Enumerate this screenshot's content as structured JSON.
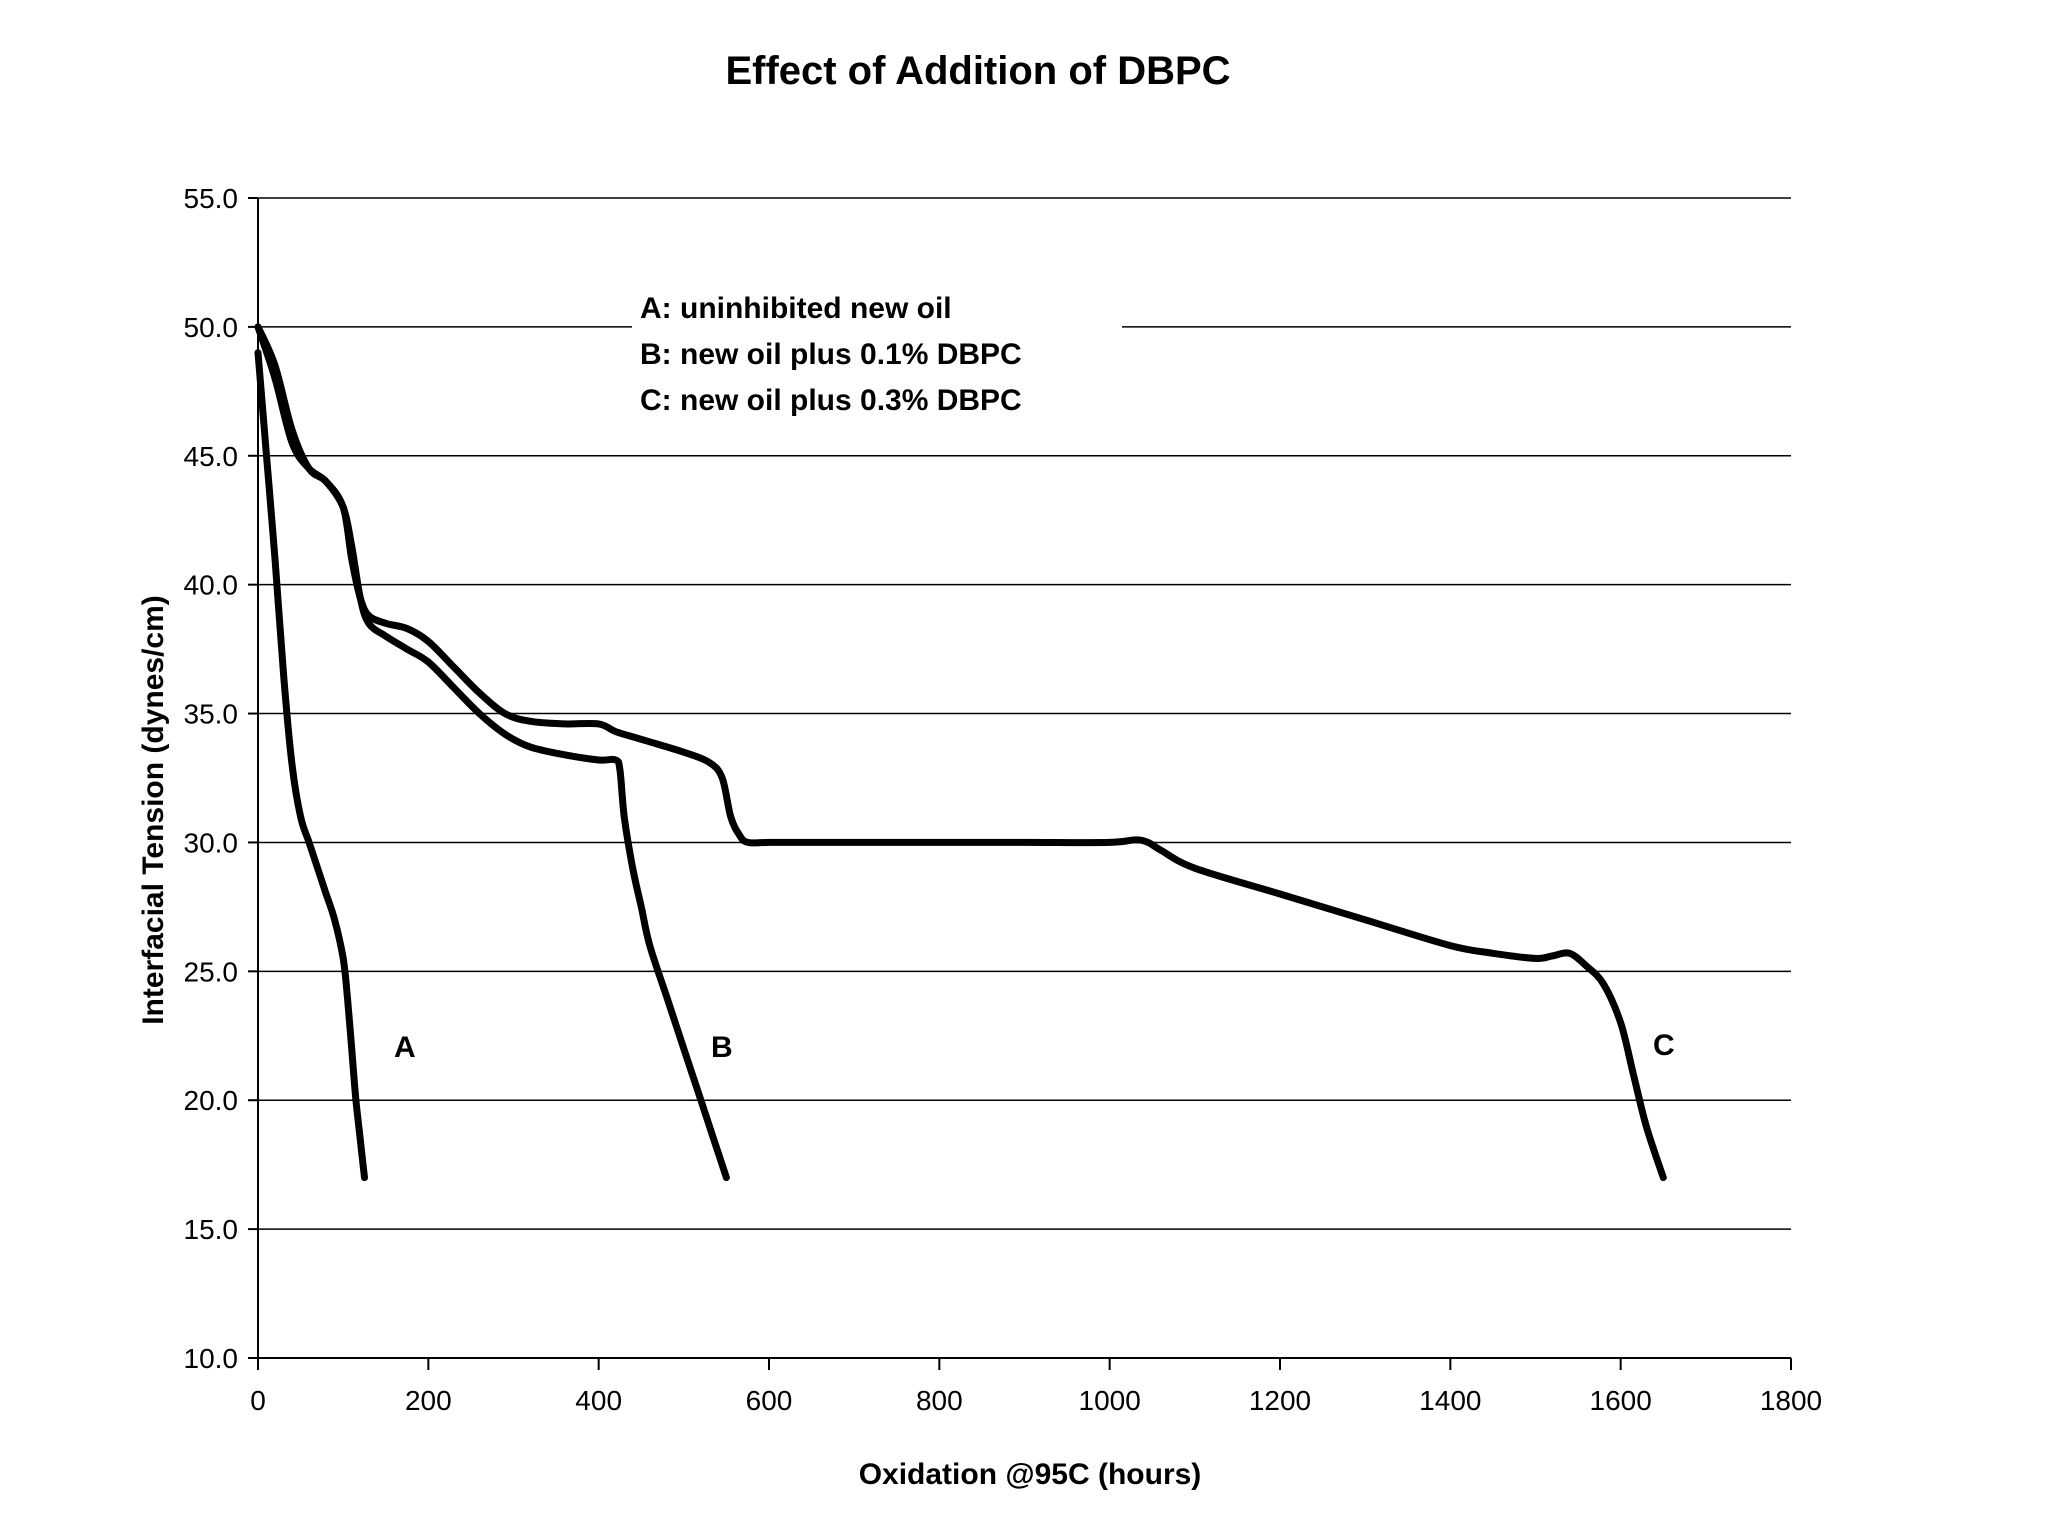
{
  "chart_data": {
    "type": "line",
    "title": "Effect of Addition of DBPC",
    "xlabel": "Oxidation @95C (hours)",
    "ylabel": "Interfacial Tension (dynes/cm)",
    "xlim": [
      0,
      1800
    ],
    "ylim": [
      10,
      55
    ],
    "x_ticks": [
      "0",
      "200",
      "400",
      "600",
      "800",
      "1000",
      "1200",
      "1400",
      "1600",
      "1800"
    ],
    "y_ticks": [
      "10.0",
      "15.0",
      "20.0",
      "25.0",
      "30.0",
      "35.0",
      "40.0",
      "45.0",
      "50.0",
      "55.0"
    ],
    "x_tick_values": [
      0,
      200,
      400,
      600,
      800,
      1000,
      1200,
      1400,
      1600,
      1800
    ],
    "y_tick_values": [
      10,
      15,
      20,
      25,
      30,
      35,
      40,
      45,
      50,
      55
    ],
    "grid": "horizontal",
    "legend_placement": "top-center",
    "legend": [
      "A: uninhibited new oil",
      "B: new oil plus 0.1% DBPC",
      "C: new oil plus 0.3% DBPC"
    ],
    "line_color": "#000000",
    "series": [
      {
        "name": "A",
        "x": [
          0,
          10,
          20,
          30,
          40,
          50,
          60,
          70,
          80,
          90,
          100,
          105,
          110,
          115,
          120,
          125
        ],
        "y": [
          49,
          45,
          41,
          36.5,
          33,
          31,
          30,
          29,
          28,
          27,
          25.5,
          24,
          22,
          20,
          18.5,
          17
        ]
      },
      {
        "name": "B",
        "x": [
          0,
          20,
          40,
          60,
          80,
          100,
          110,
          120,
          130,
          150,
          175,
          200,
          230,
          260,
          290,
          320,
          360,
          400,
          420,
          425,
          430,
          440,
          450,
          460,
          480,
          500,
          520,
          535,
          550
        ],
        "y": [
          50,
          48,
          45.5,
          44.5,
          44,
          43,
          41.5,
          39.5,
          38.5,
          38,
          37.5,
          37,
          36,
          35,
          34.2,
          33.7,
          33.4,
          33.2,
          33.2,
          32.8,
          31,
          29,
          27.5,
          26,
          24,
          22,
          20,
          18.5,
          17
        ]
      },
      {
        "name": "C",
        "x": [
          0,
          20,
          40,
          60,
          80,
          100,
          110,
          120,
          130,
          150,
          175,
          200,
          230,
          260,
          290,
          320,
          360,
          400,
          420,
          450,
          500,
          530,
          545,
          555,
          565,
          575,
          600,
          650,
          700,
          800,
          900,
          1000,
          1030,
          1045,
          1060,
          1100,
          1200,
          1300,
          1400,
          1450,
          1500,
          1520,
          1540,
          1560,
          1580,
          1600,
          1615,
          1630,
          1650
        ],
        "y": [
          50,
          48.5,
          46,
          44.5,
          44,
          43,
          41,
          39.5,
          38.8,
          38.5,
          38.3,
          37.8,
          36.8,
          35.8,
          35,
          34.7,
          34.6,
          34.6,
          34.3,
          34,
          33.5,
          33.1,
          32.5,
          31,
          30.3,
          30,
          30,
          30,
          30,
          30,
          30,
          30,
          30.1,
          30,
          29.7,
          29,
          28,
          27,
          26,
          25.7,
          25.5,
          25.6,
          25.7,
          25.2,
          24.5,
          23,
          21,
          19,
          17
        ]
      }
    ]
  }
}
